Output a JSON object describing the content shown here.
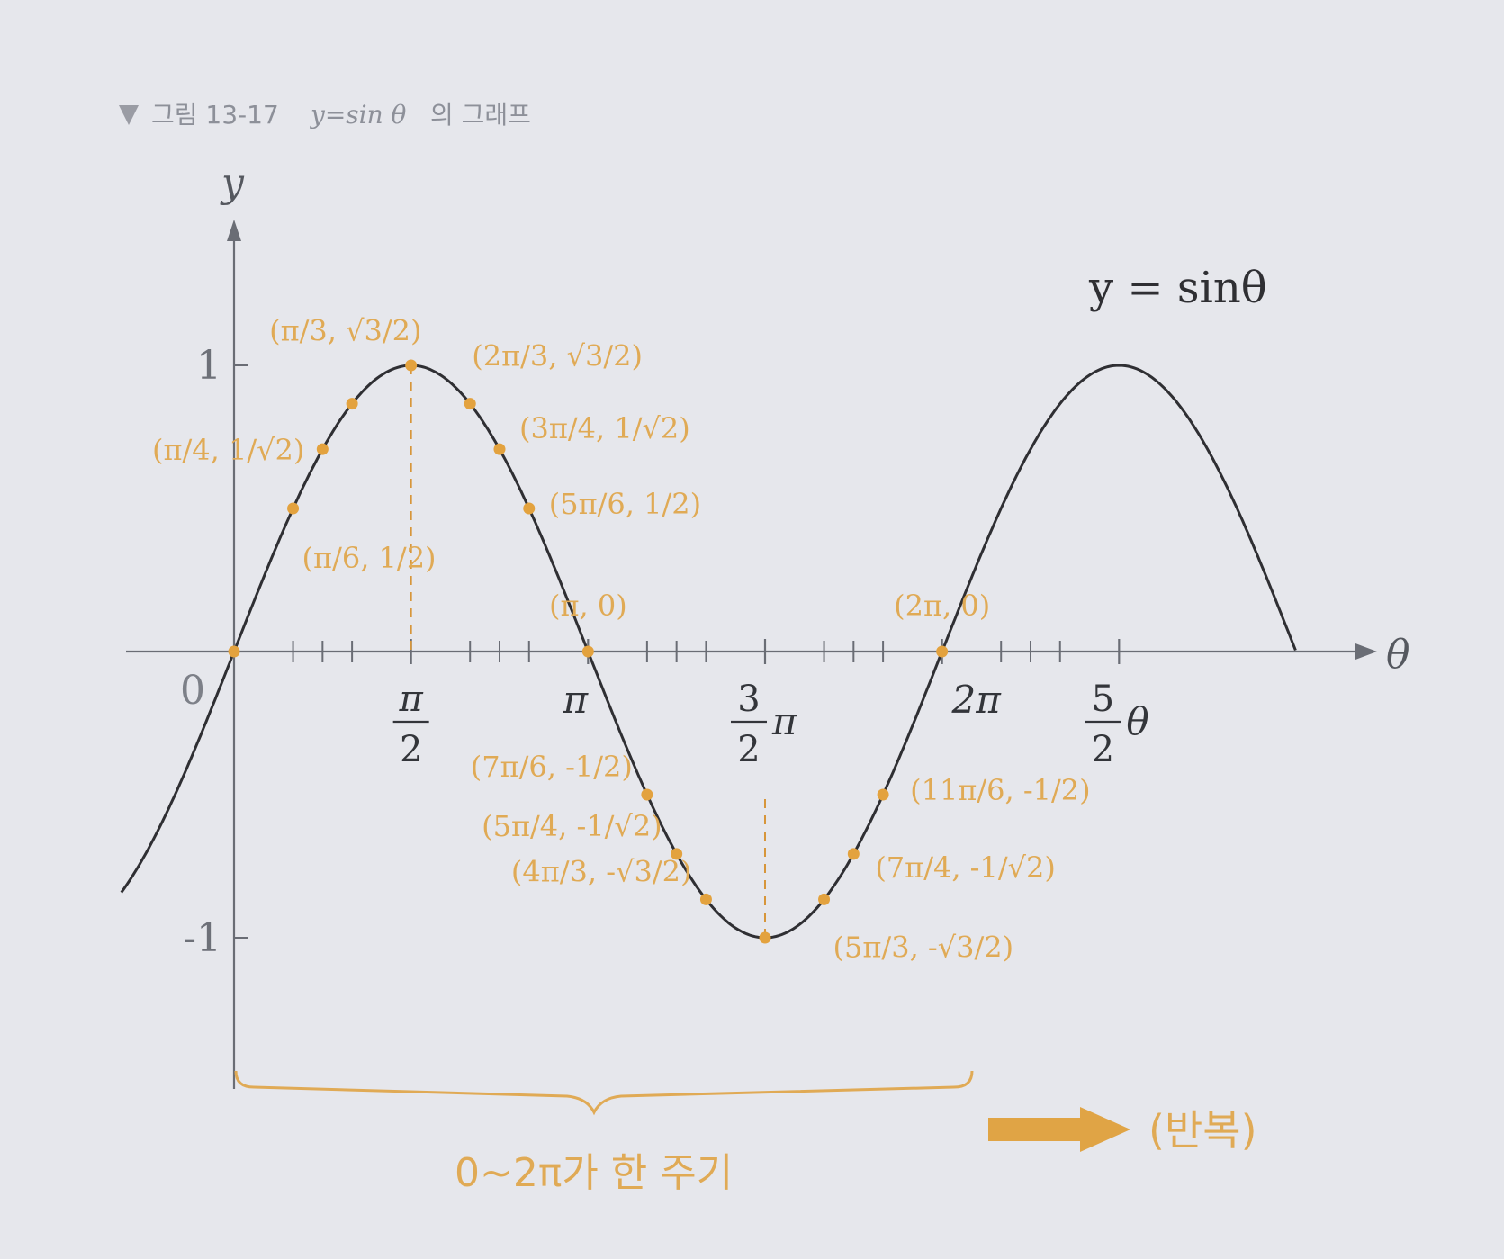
{
  "figure": {
    "caption_prefix": "그림 13-17",
    "caption_formula": "y=sin θ",
    "caption_suffix": "의 그래프"
  },
  "chart_data": {
    "type": "line",
    "title": "",
    "xlabel": "θ",
    "ylabel": "y",
    "origin_label": "0",
    "function_label": "y = sinθ",
    "xlim": [
      -0.55,
      6.85
    ],
    "ylim": [
      -1.2,
      1.3
    ],
    "y_ticks": [
      {
        "value": 1,
        "label": "1"
      },
      {
        "value": -1,
        "label": "-1"
      }
    ],
    "x_ticks": [
      {
        "value": 1.5708,
        "num": "π",
        "den": "2",
        "suffix": ""
      },
      {
        "value": 3.1416,
        "num": "",
        "den": "",
        "suffix": "π"
      },
      {
        "value": 4.7124,
        "num": "3",
        "den": "2",
        "suffix": "π"
      },
      {
        "value": 6.2832,
        "num": "",
        "den": "",
        "suffix": "2π"
      },
      {
        "value": 7.854,
        "num": "5",
        "den": "2",
        "suffix": "θ"
      }
    ],
    "minor_ticks": [
      0.5236,
      0.7854,
      1.0472,
      2.0944,
      2.3562,
      2.618,
      3.6652,
      3.927,
      4.1888,
      5.236,
      5.4978,
      5.7596,
      6.8068,
      7.0686,
      7.3304
    ],
    "series": [
      {
        "x_start": -1.0,
        "x_end": 9.42,
        "function": "sin"
      }
    ],
    "points": [
      {
        "x": 0,
        "y": 0,
        "label": ""
      },
      {
        "x": 0.5236,
        "y": 0.5,
        "label": "(π/6, 1/2)"
      },
      {
        "x": 0.7854,
        "y": 0.7071,
        "label": "(π/4, 1/√2)"
      },
      {
        "x": 1.0472,
        "y": 0.866,
        "label": "(π/3, √3/2)"
      },
      {
        "x": 1.5708,
        "y": 1,
        "label": ""
      },
      {
        "x": 2.0944,
        "y": 0.866,
        "label": "(2π/3, √3/2)"
      },
      {
        "x": 2.3562,
        "y": 0.7071,
        "label": "(3π/4, 1/√2)"
      },
      {
        "x": 2.618,
        "y": 0.5,
        "label": "(5π/6, 1/2)"
      },
      {
        "x": 3.1416,
        "y": 0,
        "label": "(π, 0)"
      },
      {
        "x": 3.6652,
        "y": -0.5,
        "label": "(7π/6, -1/2)"
      },
      {
        "x": 3.927,
        "y": -0.7071,
        "label": "(5π/4, -1/√2)"
      },
      {
        "x": 4.1888,
        "y": -0.866,
        "label": "(4π/3, -√3/2)"
      },
      {
        "x": 4.7124,
        "y": -1,
        "label": ""
      },
      {
        "x": 5.236,
        "y": -0.866,
        "label": "(5π/3, -√3/2)"
      },
      {
        "x": 5.4978,
        "y": -0.7071,
        "label": "(7π/4, -1/√2)"
      },
      {
        "x": 5.7596,
        "y": -0.5,
        "label": "(11π/6, -1/2)"
      },
      {
        "x": 6.2832,
        "y": 0,
        "label": "(2π, 0)"
      }
    ],
    "dashed_guides": [
      1.5708,
      4.7124
    ],
    "period_label": "0~2π가 한 주기",
    "repeat_label": "(반복)",
    "colors": {
      "curve": "#2f2f33",
      "axis": "#6a6d75",
      "point": "#e3a23e",
      "label": "#e0aa55",
      "guide": "#d7963a",
      "arrow": "#e0a445"
    }
  }
}
